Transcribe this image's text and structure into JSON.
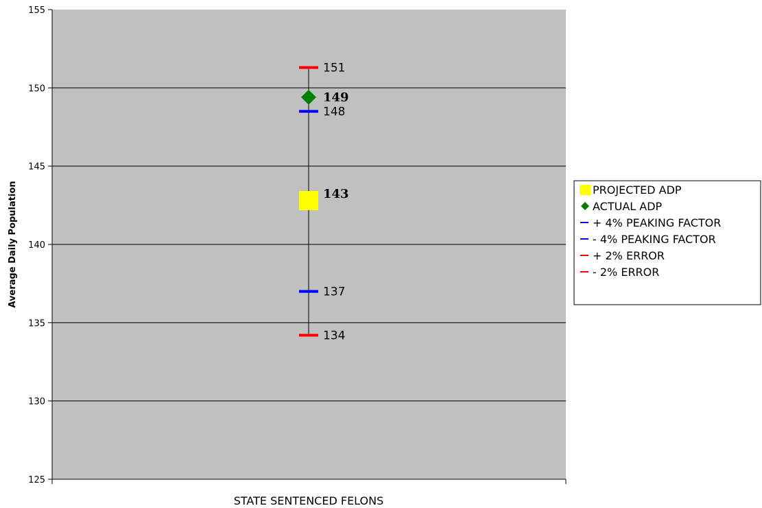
{
  "chart_data": {
    "type": "scatter",
    "title": "",
    "ylabel": "Average Daily Population",
    "categories": [
      "STATE SENTENCED FELONS"
    ],
    "ylim": [
      125,
      155
    ],
    "yticks": [
      125,
      130,
      135,
      140,
      145,
      150,
      155
    ],
    "grid": true,
    "legend_position": "right",
    "plot_background": "#c0c0c0",
    "series": [
      {
        "name": "PROJECTED ADP",
        "marker": "square",
        "color": "#ffff00",
        "values": [
          142.8
        ],
        "label": "143",
        "bold": true
      },
      {
        "name": "ACTUAL ADP",
        "marker": "diamond",
        "color": "#008000",
        "values": [
          149.4
        ],
        "label": "149",
        "bold": true
      },
      {
        "name": "+ 4% PEAKING FACTOR",
        "marker": "dash",
        "color": "#0000ff",
        "values": [
          148.5
        ],
        "label": "148",
        "bold": false
      },
      {
        "name": "- 4% PEAKING FACTOR",
        "marker": "dash",
        "color": "#0000ff",
        "values": [
          137.0
        ],
        "label": "137",
        "bold": false
      },
      {
        "name": "+ 2% ERROR",
        "marker": "dash",
        "color": "#ff0000",
        "values": [
          151.3
        ],
        "label": "151",
        "bold": false
      },
      {
        "name": "- 2% ERROR",
        "marker": "dash",
        "color": "#ff0000",
        "values": [
          134.2
        ],
        "label": "134",
        "bold": false
      }
    ],
    "range_line": {
      "low": 134.2,
      "high": 151.3,
      "color": "#000000"
    }
  }
}
